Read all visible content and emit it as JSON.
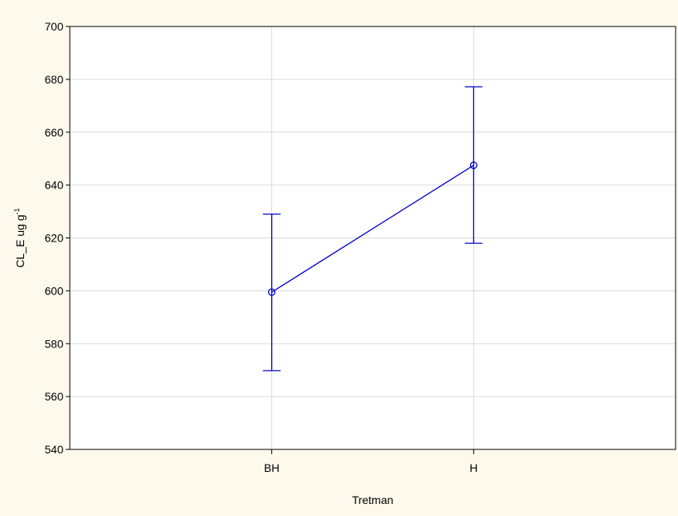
{
  "chart_data": {
    "type": "line",
    "xlabel": "Tretman",
    "ylabel": {
      "main": "CL_E ug g",
      "superscript": "-1"
    },
    "categories": [
      "BH",
      "H"
    ],
    "series": [
      {
        "values": [
          599.5,
          647.5
        ],
        "error_low": [
          569.8,
          618.0
        ],
        "error_high": [
          629.0,
          677.2
        ],
        "color": "#0000cc"
      }
    ],
    "ylim": [
      540,
      700
    ],
    "yticks": [
      540,
      560,
      580,
      600,
      620,
      640,
      660,
      680,
      700
    ],
    "grid": true,
    "background_color": "#fdf9ec",
    "plot_background_color": "#ffffff"
  }
}
